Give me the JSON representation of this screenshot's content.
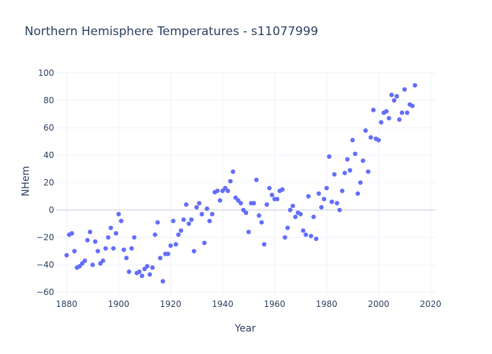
{
  "chart_data": {
    "type": "scatter",
    "title": "Northern Hemisphere Temperatures - s11077999",
    "xlabel": "Year",
    "ylabel": "NHem",
    "xlim": [
      1876,
      2022
    ],
    "ylim": [
      -62,
      102
    ],
    "x_ticks": [
      1880,
      1900,
      1920,
      1940,
      1960,
      1980,
      2000,
      2020
    ],
    "y_ticks": [
      -60,
      -40,
      -20,
      0,
      20,
      40,
      60,
      80,
      100
    ],
    "grid": true,
    "marker_color": "#636efa",
    "x": [
      1880,
      1881,
      1882,
      1883,
      1884,
      1885,
      1886,
      1887,
      1888,
      1889,
      1890,
      1891,
      1892,
      1893,
      1894,
      1895,
      1896,
      1897,
      1898,
      1899,
      1900,
      1901,
      1902,
      1903,
      1904,
      1905,
      1906,
      1907,
      1908,
      1909,
      1910,
      1911,
      1912,
      1913,
      1914,
      1915,
      1916,
      1917,
      1918,
      1919,
      1920,
      1921,
      1922,
      1923,
      1924,
      1925,
      1926,
      1927,
      1928,
      1929,
      1930,
      1931,
      1932,
      1933,
      1934,
      1935,
      1936,
      1937,
      1938,
      1939,
      1940,
      1941,
      1942,
      1943,
      1944,
      1945,
      1946,
      1947,
      1948,
      1949,
      1950,
      1951,
      1952,
      1953,
      1954,
      1955,
      1956,
      1957,
      1958,
      1959,
      1960,
      1961,
      1962,
      1963,
      1964,
      1965,
      1966,
      1967,
      1968,
      1969,
      1970,
      1971,
      1972,
      1973,
      1974,
      1975,
      1976,
      1977,
      1978,
      1979,
      1980,
      1981,
      1982,
      1983,
      1984,
      1985,
      1986,
      1987,
      1988,
      1989,
      1990,
      1991,
      1992,
      1993,
      1994,
      1995,
      1996,
      1997,
      1998,
      1999,
      2000,
      2001,
      2002,
      2003,
      2004,
      2005,
      2006,
      2007,
      2008,
      2009,
      2010,
      2011,
      2012,
      2013,
      2014
    ],
    "y": [
      -33,
      -18,
      -17,
      -30,
      -42,
      -41,
      -39,
      -37,
      -22,
      -16,
      -40,
      -23,
      -30,
      -39,
      -37,
      -28,
      -20,
      -13,
      -28,
      -17,
      -3,
      -8,
      -29,
      -35,
      -45,
      -28,
      -20,
      -46,
      -45,
      -48,
      -43,
      -41,
      -47,
      -42,
      -18,
      -9,
      -35,
      -52,
      -32,
      -32,
      -26,
      -8,
      -25,
      -18,
      -15,
      -7,
      4,
      -10,
      -7,
      -30,
      2,
      5,
      -3,
      -24,
      1,
      -8,
      -3,
      13,
      14,
      7,
      14,
      16,
      14,
      21,
      28,
      9,
      7,
      5,
      0,
      -2,
      -16,
      5,
      5,
      22,
      -4,
      -9,
      -25,
      4,
      16,
      11,
      8,
      8,
      14,
      15,
      -20,
      -13,
      0,
      3,
      -5,
      -2,
      -3,
      -15,
      -18,
      10,
      -19,
      -5,
      -21,
      12,
      2,
      8,
      16,
      39,
      6,
      26,
      5,
      0,
      14,
      27,
      37,
      29,
      51,
      41,
      12,
      20,
      36,
      58,
      28,
      53,
      73,
      52,
      51,
      64,
      71,
      72,
      67,
      84,
      80,
      83,
      66,
      71,
      88,
      71,
      77,
      76,
      91
    ]
  }
}
